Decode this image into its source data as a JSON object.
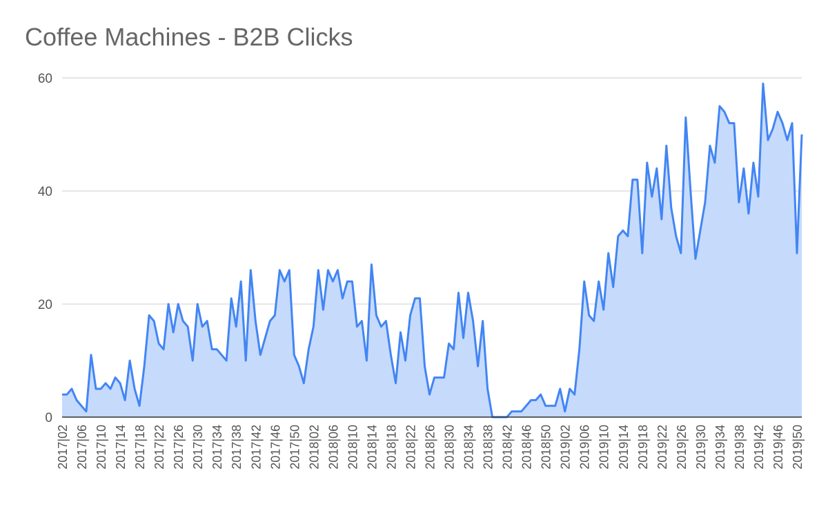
{
  "chart_data": {
    "type": "area",
    "title": "Coffee Machines - B2B Clicks",
    "categories": [
      "2017|02",
      null,
      null,
      null,
      "2017|06",
      null,
      null,
      null,
      "2017|10",
      null,
      null,
      null,
      "2017|14",
      null,
      null,
      null,
      "2017|18",
      null,
      null,
      null,
      "2017|22",
      null,
      null,
      null,
      "2017|26",
      null,
      null,
      null,
      "2017|30",
      null,
      null,
      null,
      "2017|34",
      null,
      null,
      null,
      "2017|38",
      null,
      null,
      null,
      "2017|42",
      null,
      null,
      null,
      "2017|46",
      null,
      null,
      null,
      "2017|50",
      null,
      null,
      null,
      "2018|02",
      null,
      null,
      null,
      "2018|06",
      null,
      null,
      null,
      "2018|10",
      null,
      null,
      null,
      "2018|14",
      null,
      null,
      null,
      "2018|18",
      null,
      null,
      null,
      "2018|22",
      null,
      null,
      null,
      "2018|26",
      null,
      null,
      null,
      "2018|30",
      null,
      null,
      null,
      "2018|34",
      null,
      null,
      null,
      "2018|38",
      null,
      null,
      null,
      "2018|42",
      null,
      null,
      null,
      "2018|46",
      null,
      null,
      null,
      "2018|50",
      null,
      null,
      null,
      "2019|02",
      null,
      null,
      null,
      "2019|06",
      null,
      null,
      null,
      "2019|10",
      null,
      null,
      null,
      "2019|14",
      null,
      null,
      null,
      "2019|18",
      null,
      null,
      null,
      "2019|22",
      null,
      null,
      null,
      "2019|26",
      null,
      null,
      null,
      "2019|30",
      null,
      null,
      null,
      "2019|34",
      null,
      null,
      null,
      "2019|38",
      null,
      null,
      null,
      "2019|42",
      null,
      null,
      null,
      "2019|46",
      null,
      null,
      null,
      "2019|50",
      null
    ],
    "values": [
      4,
      4,
      5,
      3,
      2,
      1,
      11,
      5,
      5,
      6,
      5,
      7,
      6,
      3,
      10,
      5,
      2,
      9,
      18,
      17,
      13,
      12,
      20,
      15,
      20,
      17,
      16,
      10,
      20,
      16,
      17,
      12,
      12,
      11,
      10,
      21,
      16,
      24,
      10,
      26,
      17,
      11,
      14,
      17,
      18,
      26,
      24,
      26,
      11,
      9,
      6,
      12,
      16,
      26,
      19,
      26,
      24,
      26,
      21,
      24,
      24,
      16,
      17,
      10,
      27,
      18,
      16,
      17,
      11,
      6,
      15,
      10,
      18,
      21,
      21,
      9,
      4,
      7,
      7,
      7,
      13,
      12,
      22,
      14,
      22,
      17,
      9,
      17,
      5,
      0,
      0,
      0,
      0,
      1,
      1,
      1,
      2,
      3,
      3,
      4,
      2,
      2,
      2,
      5,
      1,
      5,
      4,
      12,
      24,
      18,
      17,
      24,
      19,
      29,
      23,
      32,
      33,
      32,
      42,
      42,
      29,
      45,
      39,
      44,
      35,
      48,
      37,
      32,
      29,
      53,
      40,
      28,
      33,
      38,
      48,
      45,
      55,
      54,
      52,
      52,
      38,
      44,
      36,
      45,
      39,
      59,
      49,
      51,
      54,
      52,
      49,
      52,
      29,
      50
    ],
    "color": "#4285f4",
    "fill": "#c6dafc",
    "ylim": [
      0,
      60
    ],
    "yticks": [
      0,
      20,
      40,
      60
    ],
    "grid": true
  }
}
